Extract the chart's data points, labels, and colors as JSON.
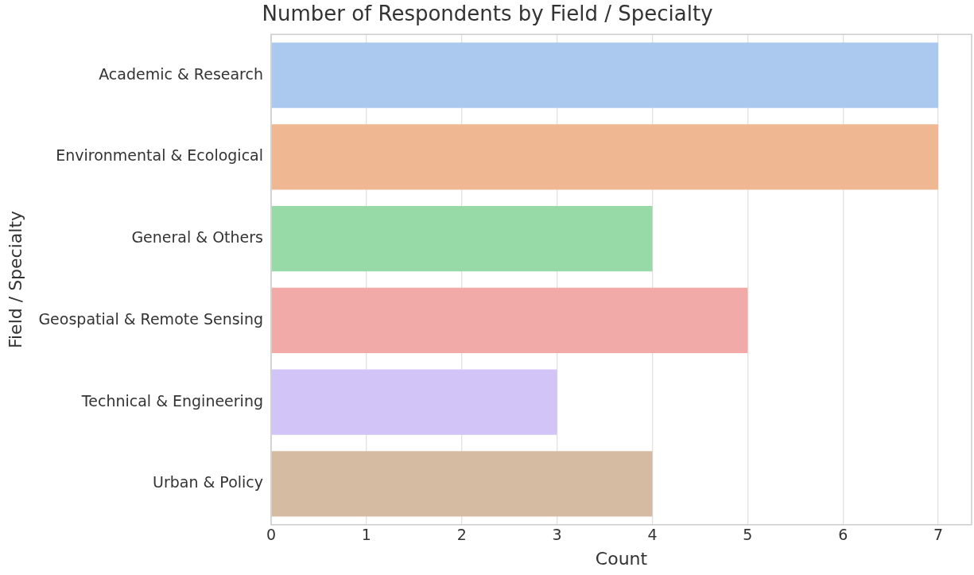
{
  "chart_data": {
    "type": "bar",
    "orientation": "horizontal",
    "title": "Number of Respondents by Field / Specialty",
    "xlabel": "Count",
    "ylabel": "Field / Specialty",
    "categories": [
      "Academic & Research",
      "Environmental & Ecological",
      "General & Others",
      "Geospatial & Remote Sensing",
      "Technical & Engineering",
      "Urban & Policy"
    ],
    "values": [
      7,
      7,
      4,
      5,
      3,
      4
    ],
    "colors": [
      "#abc9ee",
      "#f0b892",
      "#98d9a8",
      "#f1aaa8",
      "#d2c4f7",
      "#d5bba2"
    ],
    "xlim": [
      0,
      7.35
    ],
    "xticks": [
      0,
      1,
      2,
      3,
      4,
      5,
      6,
      7
    ],
    "grid": "x",
    "legend": false
  }
}
